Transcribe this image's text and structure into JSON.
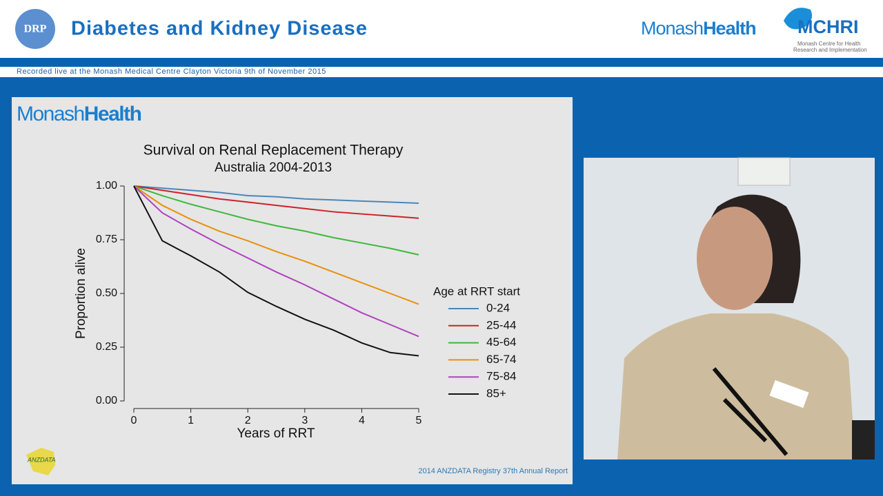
{
  "header": {
    "badge": "DRP",
    "title": "Diabetes and Kidney Disease",
    "recorded": "Recorded live at the Monash Medical Centre Clayton Victoria 9th of November 2015",
    "logo_light": "Monash",
    "logo_bold": "Health",
    "institute": "MCHRI",
    "institute_line1": "Monash Centre for Health",
    "institute_line2": "Research and Implementation"
  },
  "slide": {
    "logo_light": "Monash",
    "logo_bold": "Health",
    "source_logo": "ANZDATA",
    "footer": "2014 ANZDATA  Registry 37th Annual Report"
  },
  "chart_data": {
    "type": "line",
    "title": "Survival on Renal Replacement Therapy",
    "subtitle": "Australia 2004-2013",
    "x_label": "Years of RRT",
    "y_label": "Proportion alive",
    "legend_title": "Age at RRT start",
    "legend": "right",
    "x": [
      0,
      0.5,
      1,
      1.5,
      2,
      2.5,
      3,
      3.5,
      4,
      4.5,
      5
    ],
    "series": [
      {
        "name": "0-24",
        "color": "#4a86b8",
        "values": [
          1,
          0.99,
          0.98,
          0.97,
          0.955,
          0.95,
          0.94,
          0.935,
          0.93,
          0.925,
          0.92
        ]
      },
      {
        "name": "25-44",
        "color": "#d0202a",
        "values": [
          1,
          0.98,
          0.96,
          0.94,
          0.925,
          0.91,
          0.895,
          0.88,
          0.87,
          0.86,
          0.85
        ]
      },
      {
        "name": "45-64",
        "color": "#3cb83c",
        "values": [
          1,
          0.955,
          0.915,
          0.88,
          0.845,
          0.815,
          0.79,
          0.76,
          0.735,
          0.71,
          0.68
        ]
      },
      {
        "name": "65-74",
        "color": "#e8900a",
        "values": [
          1,
          0.91,
          0.845,
          0.79,
          0.745,
          0.695,
          0.65,
          0.6,
          0.55,
          0.5,
          0.45
        ]
      },
      {
        "name": "75-84",
        "color": "#b040c0",
        "values": [
          1,
          0.875,
          0.8,
          0.73,
          0.665,
          0.6,
          0.54,
          0.475,
          0.41,
          0.355,
          0.3
        ]
      },
      {
        "name": "85+",
        "color": "#111111",
        "values": [
          1,
          0.745,
          0.675,
          0.6,
          0.505,
          0.44,
          0.38,
          0.33,
          0.27,
          0.225,
          0.21
        ]
      }
    ],
    "xlim": [
      0,
      5
    ],
    "xticks": [
      0,
      1,
      2,
      3,
      4,
      5
    ],
    "ylim": [
      0,
      1
    ],
    "yticks": [
      {
        "value": 0,
        "label": "0.00"
      },
      {
        "value": 0.25,
        "label": "0.25"
      },
      {
        "value": 0.5,
        "label": "0.50"
      },
      {
        "value": 0.75,
        "label": "0.75"
      },
      {
        "value": 1,
        "label": "1.00"
      }
    ],
    "grid": false
  }
}
